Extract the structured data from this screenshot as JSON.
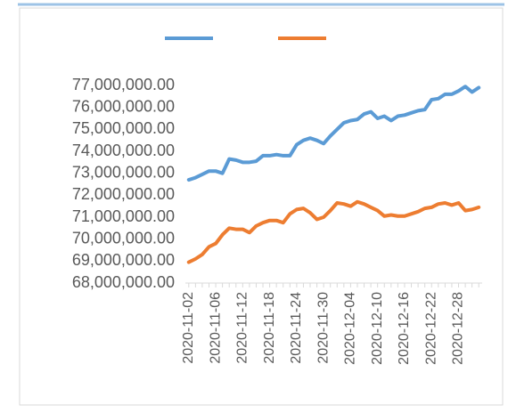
{
  "chart_data": {
    "type": "line",
    "categories": [
      "2020-11-02",
      null,
      null,
      null,
      "2020-11-06",
      null,
      null,
      null,
      "2020-11-12",
      null,
      null,
      null,
      "2020-11-18",
      null,
      null,
      null,
      "2020-11-24",
      null,
      null,
      null,
      "2020-11-30",
      null,
      null,
      null,
      "2020-12-04",
      null,
      null,
      null,
      "2020-12-10",
      null,
      null,
      null,
      "2020-12-16",
      null,
      null,
      null,
      "2020-12-22",
      null,
      null,
      null,
      "2020-12-28",
      null,
      null,
      null
    ],
    "series": [
      {
        "color": "#5b9bd5",
        "values": [
          72700000,
          72800000,
          72950000,
          73100000,
          73100000,
          73000000,
          73650000,
          73600000,
          73500000,
          73500000,
          73550000,
          73800000,
          73800000,
          73850000,
          73800000,
          73800000,
          74300000,
          74500000,
          74600000,
          74500000,
          74350000,
          74700000,
          75000000,
          75300000,
          75400000,
          75450000,
          75700000,
          75800000,
          75500000,
          75600000,
          75400000,
          75600000,
          75650000,
          75750000,
          75850000,
          75900000,
          76350000,
          76400000,
          76600000,
          76600000,
          76750000,
          76950000,
          76700000,
          76900000
        ]
      },
      {
        "color": "#ed7d31",
        "values": [
          68950000,
          69100000,
          69300000,
          69650000,
          69800000,
          70200000,
          70500000,
          70450000,
          70450000,
          70300000,
          70600000,
          70750000,
          70850000,
          70850000,
          70750000,
          71150000,
          71350000,
          71400000,
          71200000,
          70900000,
          71000000,
          71300000,
          71650000,
          71600000,
          71500000,
          71700000,
          71600000,
          71450000,
          71300000,
          71050000,
          71100000,
          71050000,
          71050000,
          71150000,
          71250000,
          71400000,
          71450000,
          71600000,
          71650000,
          71550000,
          71650000,
          71300000,
          71350000,
          71450000
        ]
      }
    ],
    "ylim": [
      68000000,
      77000000
    ],
    "yticks": [
      {
        "value": 68000000,
        "label": "68,000,000.00"
      },
      {
        "value": 69000000,
        "label": "69,000,000.00"
      },
      {
        "value": 70000000,
        "label": "70,000,000.00"
      },
      {
        "value": 71000000,
        "label": "71,000,000.00"
      },
      {
        "value": 72000000,
        "label": "72,000,000.00"
      },
      {
        "value": 73000000,
        "label": "73,000,000.00"
      },
      {
        "value": 74000000,
        "label": "74,000,000.00"
      },
      {
        "value": 75000000,
        "label": "75,000,000.00"
      },
      {
        "value": 76000000,
        "label": "76,000,000.00"
      },
      {
        "value": 77000000,
        "label": "77,000,000.00"
      }
    ],
    "grid": false,
    "legend": "top"
  }
}
